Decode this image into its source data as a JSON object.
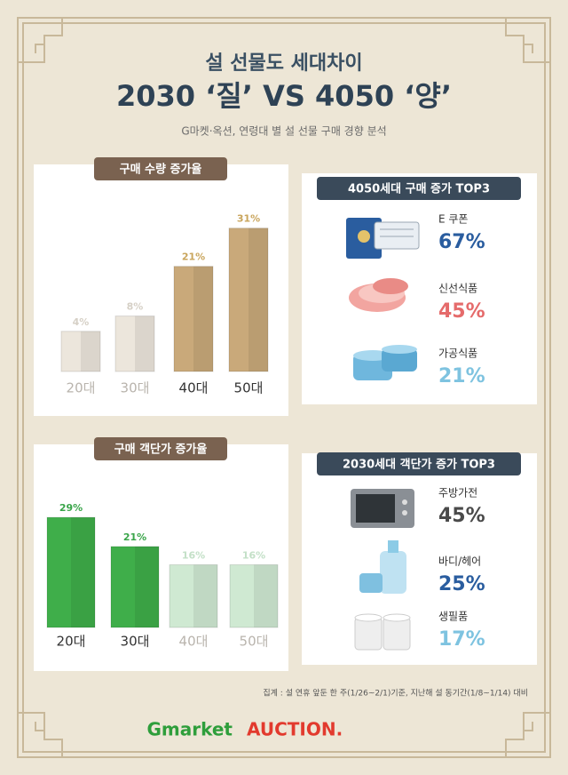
{
  "header": {
    "title": "설 선물도 세대차이",
    "headline": "2030 ‘질’ VS 4050 ‘양’",
    "subtitle": "G마켓·옥션, 연령대 별 설 선물 구매 경향 분석"
  },
  "chart_data": [
    {
      "type": "bar",
      "title": "구매 수량 증가율",
      "categories": [
        "20대",
        "30대",
        "40대",
        "50대"
      ],
      "values": [
        4,
        8,
        21,
        31
      ],
      "value_labels": [
        "4%",
        "8%",
        "21%",
        "31%"
      ],
      "colors": [
        "#ece6dc",
        "#ece6dc",
        "#c9a97a",
        "#c9a97a"
      ],
      "label_colors": [
        "#d6d0c6",
        "#d6d0c6",
        "#c9a55c",
        "#c9a55c"
      ],
      "category_colors": [
        "#b9b4ad",
        "#b9b4ad",
        "#333333",
        "#333333"
      ]
    },
    {
      "type": "bar",
      "title": "구매 객단가 증가율",
      "categories": [
        "20대",
        "30대",
        "40대",
        "50대"
      ],
      "values": [
        29,
        21,
        16,
        16
      ],
      "value_labels": [
        "29%",
        "21%",
        "16%",
        "16%"
      ],
      "colors": [
        "#3fae4a",
        "#3fae4a",
        "#cfe9d2",
        "#cfe9d2"
      ],
      "label_colors": [
        "#3aa54a",
        "#3aa54a",
        "#c3e0c7",
        "#c3e0c7"
      ],
      "category_colors": [
        "#333333",
        "#333333",
        "#b9b4ad",
        "#b9b4ad"
      ]
    }
  ],
  "top_lists": [
    {
      "title": "4050세대 구매 증가 TOP3",
      "items": [
        {
          "label": "E 쿠폰",
          "value": "67%",
          "color": "#2a5d9f"
        },
        {
          "label": "신선식품",
          "value": "45%",
          "color": "#e56b6b"
        },
        {
          "label": "가공식품",
          "value": "21%",
          "color": "#7ec3e0"
        }
      ]
    },
    {
      "title": "2030세대 객단가 증가 TOP3",
      "items": [
        {
          "label": "주방가전",
          "value": "45%",
          "color": "#4a4a4a"
        },
        {
          "label": "바디/헤어",
          "value": "25%",
          "color": "#2a5d9f"
        },
        {
          "label": "생필품",
          "value": "17%",
          "color": "#7ec3e0"
        }
      ]
    }
  ],
  "footnote": "집계 : 설 연휴 앞둔 한 주(1/26~2/1)기준, 지난해 설 동기간(1/8~1/14) 대비",
  "logos": {
    "gmarket": "Gmarket",
    "auction": "AUCTION."
  }
}
